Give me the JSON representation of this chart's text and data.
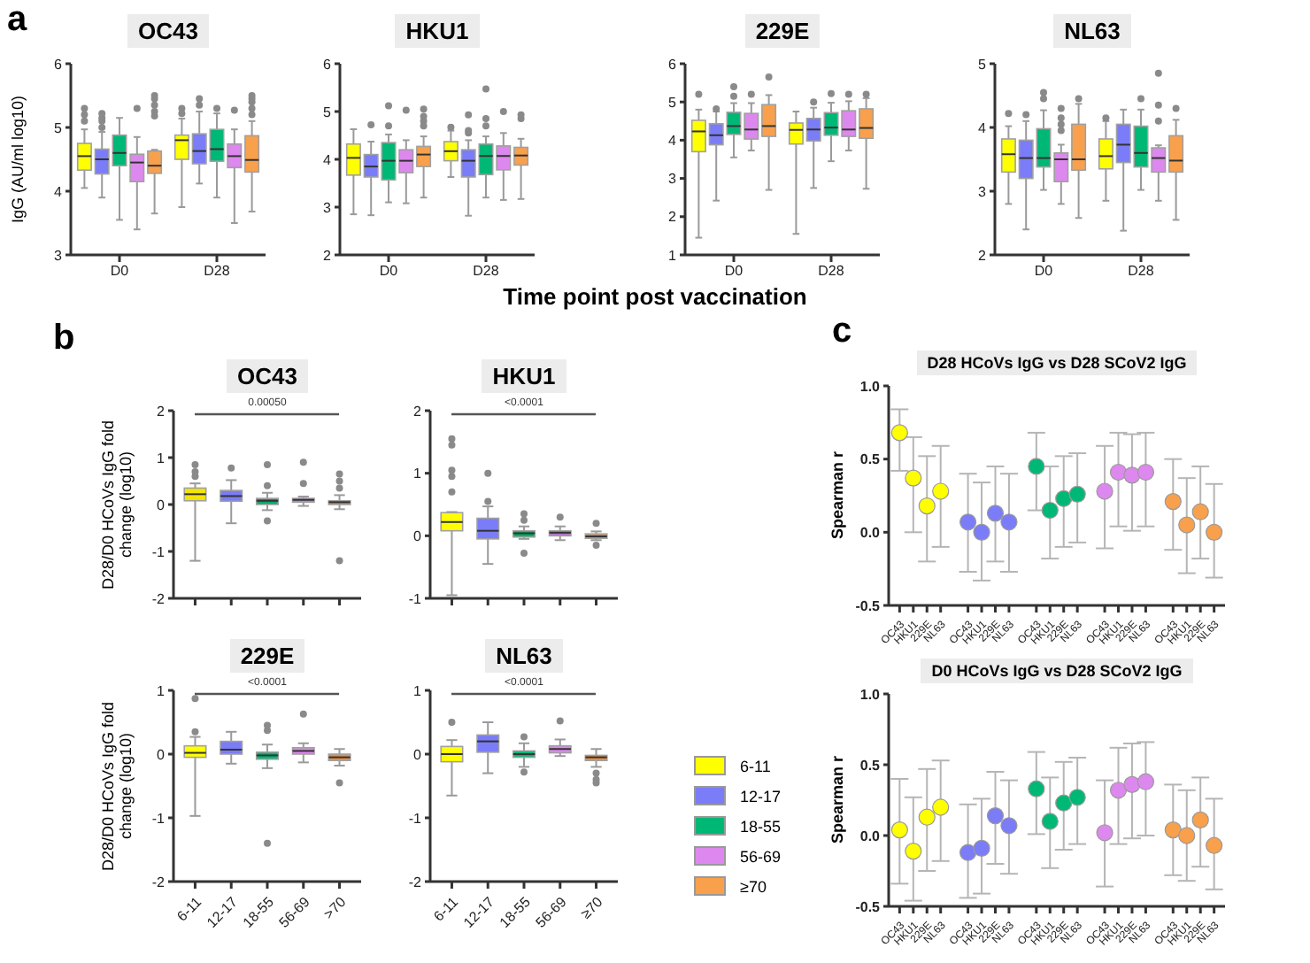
{
  "chart_data": [
    {
      "type": "box",
      "title": "OC43",
      "ylabel": "IgG (AU/ml log10)",
      "annotations": [
        "a",
        "Time point post vaccination"
      ],
      "categories": [
        "D0",
        "D28"
      ],
      "ylim": [
        3,
        6
      ],
      "yticks": [
        3,
        4,
        5,
        6
      ],
      "legend": "right",
      "series": [
        {
          "name": "6-11",
          "color": "#ffff00",
          "boxes": [
            {
              "low": 4.05,
              "q1": 4.33,
              "median": 4.55,
              "q3": 4.75,
              "high": 4.97,
              "outliers": [
                5.1,
                5.2,
                5.3
              ]
            },
            {
              "low": 3.75,
              "q1": 4.5,
              "median": 4.8,
              "q3": 4.88,
              "high": 5.14,
              "outliers": [
                5.22,
                5.3
              ]
            }
          ]
        },
        {
          "name": "12-17",
          "color": "#7b7cf7",
          "boxes": [
            {
              "low": 3.9,
              "q1": 4.27,
              "median": 4.5,
              "q3": 4.66,
              "high": 4.93,
              "outliers": [
                5.0,
                5.1,
                5.15,
                5.22
              ]
            },
            {
              "low": 4.12,
              "q1": 4.43,
              "median": 4.63,
              "q3": 4.9,
              "high": 5.25,
              "outliers": [
                5.35,
                5.45
              ]
            }
          ]
        },
        {
          "name": "18-55",
          "color": "#00b875",
          "boxes": [
            {
              "low": 3.55,
              "q1": 4.4,
              "median": 4.6,
              "q3": 4.88,
              "high": 5.15
            },
            {
              "low": 3.9,
              "q1": 4.47,
              "median": 4.66,
              "q3": 4.97,
              "high": 5.22,
              "outliers": [
                5.3
              ]
            }
          ]
        },
        {
          "name": "56-69",
          "color": "#dd88ee",
          "boxes": [
            {
              "low": 3.4,
              "q1": 4.15,
              "median": 4.45,
              "q3": 4.58,
              "high": 4.85,
              "outliers": [
                5.3
              ]
            },
            {
              "low": 3.5,
              "q1": 4.37,
              "median": 4.55,
              "q3": 4.74,
              "high": 4.97,
              "outliers": [
                5.27
              ]
            }
          ]
        },
        {
          "name": "≥70",
          "color": "#f9a04c",
          "boxes": [
            {
              "low": 3.65,
              "q1": 4.28,
              "median": 4.4,
              "q3": 4.63,
              "high": 4.65,
              "outliers": [
                5.18,
                5.25,
                5.35,
                5.45,
                5.5
              ]
            },
            {
              "low": 3.68,
              "q1": 4.3,
              "median": 4.49,
              "q3": 4.87,
              "high": 5.1,
              "outliers": [
                5.2,
                5.3,
                5.4,
                5.45,
                5.5
              ]
            }
          ]
        }
      ]
    },
    {
      "type": "box",
      "title": "HKU1",
      "categories": [
        "D0",
        "D28"
      ],
      "ylim": [
        2,
        6
      ],
      "yticks": [
        2,
        3,
        4,
        5,
        6
      ],
      "series": [
        {
          "color": "#ffff00",
          "boxes": [
            {
              "low": 2.85,
              "q1": 3.67,
              "median": 4.03,
              "q3": 4.32,
              "high": 4.63
            },
            {
              "low": 3.63,
              "q1": 3.97,
              "median": 4.17,
              "q3": 4.37,
              "high": 4.6,
              "outliers": [
                4.67
              ]
            }
          ]
        },
        {
          "color": "#7b7cf7",
          "boxes": [
            {
              "low": 2.83,
              "q1": 3.63,
              "median": 3.85,
              "q3": 4.1,
              "high": 4.37,
              "outliers": [
                4.72
              ]
            },
            {
              "low": 2.82,
              "q1": 3.63,
              "median": 3.97,
              "q3": 4.2,
              "high": 4.4,
              "outliers": [
                4.55,
                4.6,
                4.93
              ]
            }
          ]
        },
        {
          "color": "#00b875",
          "boxes": [
            {
              "low": 3.1,
              "q1": 3.57,
              "median": 3.97,
              "q3": 4.35,
              "high": 4.52,
              "outliers": [
                4.7,
                5.12
              ]
            },
            {
              "low": 3.2,
              "q1": 3.68,
              "median": 4.07,
              "q3": 4.32,
              "high": 4.48,
              "outliers": [
                4.7,
                4.85,
                5.47
              ]
            }
          ]
        },
        {
          "color": "#dd88ee",
          "boxes": [
            {
              "low": 3.08,
              "q1": 3.72,
              "median": 3.97,
              "q3": 4.2,
              "high": 4.4,
              "outliers": [
                5.03
              ]
            },
            {
              "low": 3.15,
              "q1": 3.78,
              "median": 4.07,
              "q3": 4.28,
              "high": 4.55,
              "outliers": [
                5.0
              ]
            }
          ]
        },
        {
          "color": "#f9a04c",
          "boxes": [
            {
              "low": 3.2,
              "q1": 3.85,
              "median": 4.1,
              "q3": 4.27,
              "high": 4.48,
              "outliers": [
                4.7,
                4.8,
                4.9,
                5.05
              ]
            },
            {
              "low": 3.17,
              "q1": 3.88,
              "median": 4.08,
              "q3": 4.25,
              "high": 4.43,
              "outliers": [
                4.85,
                4.93
              ]
            }
          ]
        }
      ]
    },
    {
      "type": "box",
      "title": "229E",
      "categories": [
        "D0",
        "D28"
      ],
      "ylim": [
        1,
        6
      ],
      "yticks": [
        1,
        2,
        3,
        4,
        5,
        6
      ],
      "series": [
        {
          "color": "#ffff00",
          "boxes": [
            {
              "low": 1.45,
              "q1": 3.7,
              "median": 4.23,
              "q3": 4.52,
              "high": 4.8,
              "outliers": [
                5.2
              ]
            },
            {
              "low": 1.55,
              "q1": 3.9,
              "median": 4.27,
              "q3": 4.45,
              "high": 4.75
            }
          ]
        },
        {
          "color": "#7b7cf7",
          "boxes": [
            {
              "low": 2.42,
              "q1": 3.88,
              "median": 4.13,
              "q3": 4.43,
              "high": 4.75,
              "outliers": [
                4.82
              ]
            },
            {
              "low": 2.75,
              "q1": 3.98,
              "median": 4.28,
              "q3": 4.57,
              "high": 4.85,
              "outliers": [
                5.0
              ]
            }
          ]
        },
        {
          "color": "#00b875",
          "boxes": [
            {
              "low": 3.55,
              "q1": 4.15,
              "median": 4.37,
              "q3": 4.73,
              "high": 4.97,
              "outliers": [
                5.15,
                5.4
              ]
            },
            {
              "low": 3.45,
              "q1": 4.13,
              "median": 4.33,
              "q3": 4.72,
              "high": 4.98,
              "outliers": [
                5.22
              ]
            }
          ]
        },
        {
          "color": "#dd88ee",
          "boxes": [
            {
              "low": 3.73,
              "q1": 4.03,
              "median": 4.28,
              "q3": 4.7,
              "high": 4.97,
              "outliers": [
                5.2
              ]
            },
            {
              "low": 3.73,
              "q1": 4.1,
              "median": 4.28,
              "q3": 4.77,
              "high": 5.02,
              "outliers": [
                5.2
              ]
            }
          ]
        },
        {
          "color": "#f9a04c",
          "boxes": [
            {
              "low": 2.7,
              "q1": 4.1,
              "median": 4.37,
              "q3": 4.93,
              "high": 5.18,
              "outliers": [
                5.65
              ]
            },
            {
              "low": 2.73,
              "q1": 4.05,
              "median": 4.32,
              "q3": 4.82,
              "high": 5.1,
              "outliers": [
                5.2
              ]
            }
          ]
        }
      ]
    },
    {
      "type": "box",
      "title": "NL63",
      "categories": [
        "D0",
        "D28"
      ],
      "ylim": [
        2,
        5
      ],
      "yticks": [
        2,
        3,
        4,
        5
      ],
      "series": [
        {
          "color": "#ffff00",
          "boxes": [
            {
              "low": 2.8,
              "q1": 3.3,
              "median": 3.58,
              "q3": 3.82,
              "high": 4.02,
              "outliers": [
                4.22
              ]
            },
            {
              "low": 2.85,
              "q1": 3.35,
              "median": 3.55,
              "q3": 3.82,
              "high": 4.1,
              "outliers": [
                4.15
              ]
            }
          ]
        },
        {
          "color": "#7b7cf7",
          "boxes": [
            {
              "low": 2.4,
              "q1": 3.2,
              "median": 3.52,
              "q3": 3.8,
              "high": 4.1,
              "outliers": [
                4.2
              ]
            },
            {
              "low": 2.38,
              "q1": 3.45,
              "median": 3.73,
              "q3": 4.05,
              "high": 4.28
            }
          ]
        },
        {
          "color": "#00b875",
          "boxes": [
            {
              "low": 3.02,
              "q1": 3.38,
              "median": 3.52,
              "q3": 3.98,
              "high": 4.27,
              "outliers": [
                4.45,
                4.55
              ]
            },
            {
              "low": 3.02,
              "q1": 3.38,
              "median": 3.6,
              "q3": 4.02,
              "high": 4.28,
              "outliers": [
                4.45
              ]
            }
          ]
        },
        {
          "color": "#dd88ee",
          "boxes": [
            {
              "low": 2.8,
              "q1": 3.15,
              "median": 3.5,
              "q3": 3.6,
              "high": 3.73,
              "outliers": [
                3.95,
                4.05,
                4.15,
                4.3
              ]
            },
            {
              "low": 2.85,
              "q1": 3.3,
              "median": 3.52,
              "q3": 3.68,
              "high": 3.72,
              "outliers": [
                4.1,
                4.35,
                4.85
              ]
            }
          ]
        },
        {
          "color": "#f9a04c",
          "boxes": [
            {
              "low": 2.58,
              "q1": 3.33,
              "median": 3.5,
              "q3": 4.05,
              "high": 4.37,
              "outliers": [
                4.45
              ]
            },
            {
              "low": 2.55,
              "q1": 3.3,
              "median": 3.48,
              "q3": 3.87,
              "high": 4.12,
              "outliers": [
                4.3
              ]
            }
          ]
        }
      ]
    },
    {
      "type": "box",
      "title": "OC43",
      "ylabel": "D28/D0 HCoVs IgG fold change (log10)",
      "annotations": [
        "b",
        "0.00050"
      ],
      "categories": [
        null,
        null,
        null,
        null,
        null
      ],
      "ylim": [
        -2,
        2
      ],
      "yticks": [
        -2,
        -1,
        0,
        1,
        2
      ],
      "colors": [
        "#f5e400",
        "#7b7cf7",
        "#00a86b",
        "#b77fd0",
        "#c8893c"
      ],
      "boxes": [
        {
          "low": -1.2,
          "q1": 0.08,
          "median": 0.22,
          "q3": 0.35,
          "high": 0.45,
          "outliers": [
            0.6,
            0.7,
            0.85
          ]
        },
        {
          "low": -0.4,
          "q1": 0.07,
          "median": 0.18,
          "q3": 0.3,
          "high": 0.52,
          "outliers": [
            0.78
          ]
        },
        {
          "low": -0.12,
          "q1": 0.0,
          "median": 0.08,
          "q3": 0.13,
          "high": 0.25,
          "outliers": [
            -0.35,
            0.4,
            0.85
          ]
        },
        {
          "low": -0.03,
          "q1": 0.05,
          "median": 0.1,
          "q3": 0.13,
          "high": 0.17,
          "outliers": [
            0.45,
            0.9
          ]
        },
        {
          "low": -0.1,
          "q1": 0.0,
          "median": 0.05,
          "q3": 0.08,
          "high": 0.2,
          "outliers": [
            0.35,
            0.5,
            0.65,
            -1.2
          ]
        }
      ]
    },
    {
      "type": "box",
      "title": "HKU1",
      "annotations": [
        "<0.0001"
      ],
      "categories": [
        null,
        null,
        null,
        null,
        null
      ],
      "ylim": [
        -1,
        2
      ],
      "yticks": [
        -1,
        0,
        1,
        2
      ],
      "colors": [
        "#ffff00",
        "#7b7cf7",
        "#00b060",
        "#b070c8",
        "#e08a40"
      ],
      "boxes": [
        {
          "low": -0.95,
          "q1": 0.08,
          "median": 0.22,
          "q3": 0.37,
          "high": 0.38,
          "outliers": [
            0.7,
            0.95,
            1.05,
            1.45,
            1.55
          ]
        },
        {
          "low": -0.45,
          "q1": -0.05,
          "median": 0.08,
          "q3": 0.28,
          "high": 0.47,
          "outliers": [
            0.55,
            1.0
          ]
        },
        {
          "low": -0.05,
          "q1": -0.02,
          "median": 0.04,
          "q3": 0.08,
          "high": 0.15,
          "outliers": [
            0.25,
            0.35,
            -0.28
          ]
        },
        {
          "low": -0.07,
          "q1": 0.0,
          "median": 0.05,
          "q3": 0.08,
          "high": 0.15,
          "outliers": [
            0.3
          ]
        },
        {
          "low": -0.07,
          "q1": -0.04,
          "median": -0.01,
          "q3": 0.03,
          "high": 0.07,
          "outliers": [
            -0.15,
            0.2
          ]
        }
      ]
    },
    {
      "type": "box",
      "title": "229E",
      "ylabel": "D28/D0 HCoVs IgG fold change (log10)",
      "annotations": [
        "<0.0001"
      ],
      "categories": [
        "6-11",
        "12-17",
        "18-55",
        "56-69",
        ">70"
      ],
      "ylim": [
        -2,
        1
      ],
      "yticks": [
        -2,
        -1,
        0,
        1
      ],
      "colors": [
        "#ffff00",
        "#7b7cf7",
        "#00b875",
        "#dd88ee",
        "#e0904c"
      ],
      "boxes": [
        {
          "low": -0.97,
          "q1": -0.05,
          "median": 0.02,
          "q3": 0.13,
          "high": 0.27,
          "outliers": [
            0.35,
            0.87
          ]
        },
        {
          "low": -0.15,
          "q1": 0.0,
          "median": 0.07,
          "q3": 0.2,
          "high": 0.35
        },
        {
          "low": -0.22,
          "q1": -0.08,
          "median": -0.02,
          "q3": 0.03,
          "high": 0.15,
          "outliers": [
            0.37,
            0.45,
            -1.4
          ]
        },
        {
          "low": -0.13,
          "q1": 0.0,
          "median": 0.05,
          "q3": 0.1,
          "high": 0.17,
          "outliers": [
            0.63
          ]
        },
        {
          "low": -0.18,
          "q1": -0.1,
          "median": -0.05,
          "q3": 0.0,
          "high": 0.08,
          "outliers": [
            -0.45
          ]
        }
      ]
    },
    {
      "type": "box",
      "title": "NL63",
      "annotations": [
        "<0.0001"
      ],
      "categories": [
        "6-11",
        "12-17",
        "18-55",
        "56-69",
        "≥70"
      ],
      "ylim": [
        -2,
        1
      ],
      "yticks": [
        -2,
        -1,
        0,
        1
      ],
      "colors": [
        "#ffff00",
        "#7b7cf7",
        "#00b875",
        "#dd88ee",
        "#e0904c"
      ],
      "boxes": [
        {
          "low": -0.65,
          "q1": -0.12,
          "median": 0.0,
          "q3": 0.12,
          "high": 0.22,
          "outliers": [
            0.5
          ]
        },
        {
          "low": -0.3,
          "q1": 0.03,
          "median": 0.2,
          "q3": 0.3,
          "high": 0.5
        },
        {
          "low": -0.2,
          "q1": -0.05,
          "median": 0.0,
          "q3": 0.05,
          "high": 0.17,
          "outliers": [
            0.27,
            -0.28
          ]
        },
        {
          "low": -0.03,
          "q1": 0.02,
          "median": 0.08,
          "q3": 0.13,
          "high": 0.23,
          "outliers": [
            0.52
          ]
        },
        {
          "low": -0.2,
          "q1": -0.1,
          "median": -0.05,
          "q3": -0.02,
          "high": 0.08,
          "outliers": [
            -0.3,
            -0.4,
            -0.45
          ]
        }
      ]
    },
    {
      "type": "scatter",
      "title": "D28 HCoVs IgG vs D28 SCoV2 IgG",
      "ylabel": "Spearman r",
      "annotations": [
        "c"
      ],
      "marker": "circle",
      "ylim": [
        -0.5,
        1
      ],
      "yticks": [
        {
          "value": -0.5,
          "label": "-0.5"
        },
        {
          "value": 0,
          "label": "0.0"
        },
        {
          "value": 0.5,
          "label": "0.5"
        },
        {
          "value": 1,
          "label": "1.0"
        }
      ],
      "categories": [
        "OC43",
        "HKU1",
        "229E",
        "NL63",
        "OC43",
        "HKU1",
        "229E",
        "NL63",
        "OC43",
        "HKU1",
        "229E",
        "NL63",
        "OC43",
        "HKU1",
        "229E",
        "NL63",
        "OC43",
        "HKU1",
        "229E",
        "NL63"
      ],
      "values": [
        0.68,
        0.37,
        0.18,
        0.28,
        0.07,
        0.0,
        0.13,
        0.07,
        0.45,
        0.15,
        0.23,
        0.26,
        0.28,
        0.41,
        0.39,
        0.41,
        0.21,
        0.05,
        0.14,
        0.0
      ],
      "errors": [
        [
          0.42,
          0.84
        ],
        [
          0.0,
          0.65
        ],
        [
          -0.2,
          0.52
        ],
        [
          -0.1,
          0.59
        ],
        [
          -0.27,
          0.4
        ],
        [
          -0.33,
          0.34
        ],
        [
          -0.2,
          0.45
        ],
        [
          -0.27,
          0.4
        ],
        [
          0.15,
          0.68
        ],
        [
          -0.18,
          0.45
        ],
        [
          -0.1,
          0.52
        ],
        [
          -0.07,
          0.54
        ],
        [
          -0.11,
          0.59
        ],
        [
          0.04,
          0.68
        ],
        [
          0.01,
          0.67
        ],
        [
          0.04,
          0.68
        ],
        [
          -0.12,
          0.5
        ],
        [
          -0.28,
          0.37
        ],
        [
          -0.18,
          0.45
        ],
        [
          -0.31,
          0.33
        ]
      ],
      "colors": [
        "#ffff00",
        "#ffff00",
        "#ffff00",
        "#ffff00",
        "#7b7cf7",
        "#7b7cf7",
        "#7b7cf7",
        "#7b7cf7",
        "#00b875",
        "#00b875",
        "#00b875",
        "#00b875",
        "#dd88ee",
        "#dd88ee",
        "#dd88ee",
        "#dd88ee",
        "#f9a04c",
        "#f9a04c",
        "#f9a04c",
        "#f9a04c"
      ]
    },
    {
      "type": "scatter",
      "title": "D0 HCoVs IgG vs D28 SCoV2 IgG",
      "ylabel": "Spearman r",
      "marker": "circle",
      "ylim": [
        -0.5,
        1
      ],
      "yticks": [
        {
          "value": -0.5,
          "label": "-0.5"
        },
        {
          "value": 0,
          "label": "0.0"
        },
        {
          "value": 0.5,
          "label": "0.5"
        },
        {
          "value": 1,
          "label": "1.0"
        }
      ],
      "categories": [
        "OC43",
        "HKU1",
        "229E",
        "NL63",
        "OC43",
        "HKU1",
        "229E",
        "NL63",
        "OC43",
        "HKU1",
        "229E",
        "NL63",
        "OC43",
        "HKU1",
        "229E",
        "NL63",
        "OC43",
        "HKU1",
        "229E",
        "NL63"
      ],
      "values": [
        0.04,
        -0.11,
        0.13,
        0.2,
        -0.12,
        -0.09,
        0.14,
        0.07,
        0.33,
        0.1,
        0.23,
        0.27,
        0.02,
        0.32,
        0.36,
        0.38,
        0.04,
        0.0,
        0.11,
        -0.07
      ],
      "errors": [
        [
          -0.34,
          0.4
        ],
        [
          -0.46,
          0.27
        ],
        [
          -0.25,
          0.47
        ],
        [
          -0.18,
          0.53
        ],
        [
          -0.44,
          0.22
        ],
        [
          -0.41,
          0.26
        ],
        [
          -0.2,
          0.45
        ],
        [
          -0.27,
          0.39
        ],
        [
          0.01,
          0.59
        ],
        [
          -0.23,
          0.41
        ],
        [
          -0.1,
          0.52
        ],
        [
          -0.06,
          0.55
        ],
        [
          -0.36,
          0.39
        ],
        [
          -0.06,
          0.62
        ],
        [
          -0.02,
          0.65
        ],
        [
          0.0,
          0.66
        ],
        [
          -0.28,
          0.36
        ],
        [
          -0.32,
          0.32
        ],
        [
          -0.22,
          0.41
        ],
        [
          -0.38,
          0.26
        ]
      ],
      "colors": [
        "#ffff00",
        "#ffff00",
        "#ffff00",
        "#ffff00",
        "#7b7cf7",
        "#7b7cf7",
        "#7b7cf7",
        "#7b7cf7",
        "#00b875",
        "#00b875",
        "#00b875",
        "#00b875",
        "#dd88ee",
        "#dd88ee",
        "#dd88ee",
        "#dd88ee",
        "#f9a04c",
        "#f9a04c",
        "#f9a04c",
        "#f9a04c"
      ]
    }
  ]
}
